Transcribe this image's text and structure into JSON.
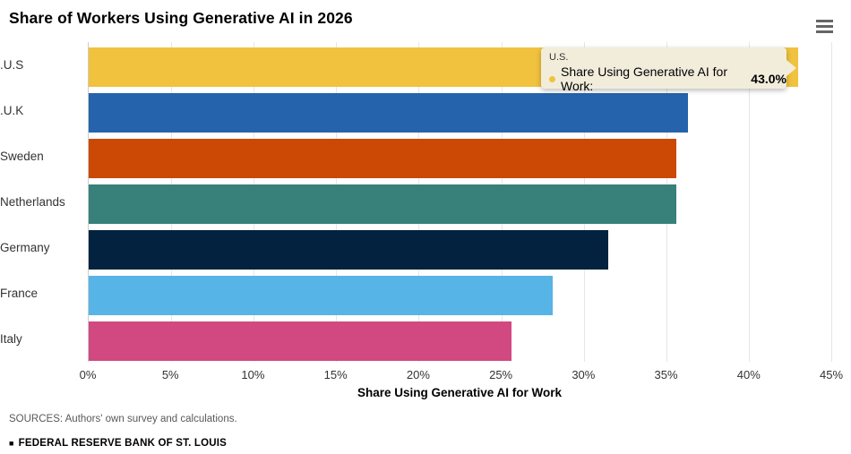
{
  "header": {
    "title": "Share of Workers Using Generative AI in 2026"
  },
  "chart_data": {
    "type": "bar",
    "orientation": "horizontal",
    "title": "Share of Workers Using Generative AI in 2026",
    "categories": [
      "U.S.",
      "U.K.",
      "Sweden",
      "Netherlands",
      "Germany",
      "France",
      "Italy"
    ],
    "values": [
      43.0,
      36.3,
      35.6,
      35.6,
      31.5,
      28.1,
      25.6
    ],
    "bar_colors": [
      "#F0C23E",
      "#2563AC",
      "#CC4805",
      "#38807A",
      "#022240",
      "#57B4E6",
      "#D14980"
    ],
    "xlabel": "Share Using Generative AI for Work",
    "ylabel": "",
    "x_ticks": [
      "0%",
      "5%",
      "10%",
      "15%",
      "20%",
      "25%",
      "30%",
      "35%",
      "40%",
      "45%"
    ],
    "xlim": [
      0,
      45
    ],
    "grid": true,
    "gridline_color": "#e6e6e6",
    "axis_line_color": "#cccccc",
    "legend": "none"
  },
  "tooltip": {
    "category": "U.S.",
    "series_label": "Share Using Generative AI for Work:",
    "value": "43.0%",
    "background": "#F2EDDB",
    "bullet_color": "#F0C23E"
  },
  "footer": {
    "sources": "SOURCES: Authors' own survey and calculations.",
    "branding_bullet": "■",
    "branding": "FEDERAL RESERVE BANK OF ST. LOUIS"
  }
}
